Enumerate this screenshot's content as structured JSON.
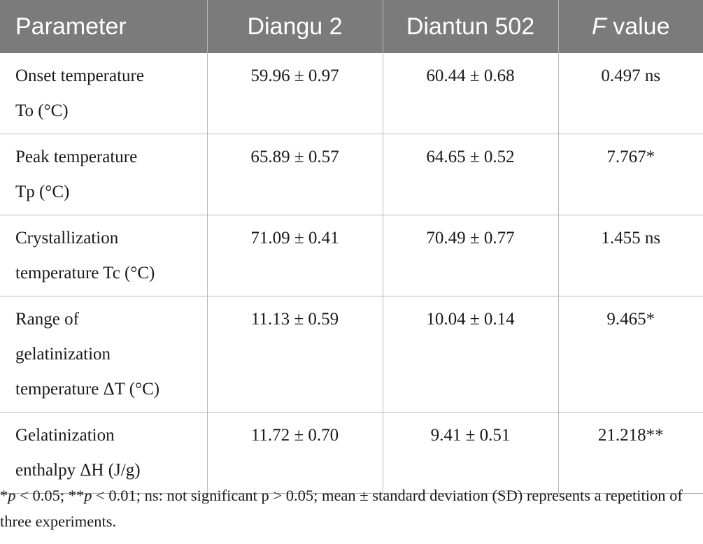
{
  "table": {
    "headers": {
      "parameter": "Parameter",
      "diangu": "Diangu 2",
      "diantun": "Diantun 502",
      "f_italic": "F",
      "f_rest": " value"
    },
    "rows": [
      {
        "param_line1": "Onset temperature",
        "param_line2": "To (°C)",
        "param_line3": "",
        "diangu": "59.96 ± 0.97",
        "diantun": "60.44 ± 0.68",
        "f_value": "0.497 ns"
      },
      {
        "param_line1": "Peak temperature",
        "param_line2": "Tp (°C)",
        "param_line3": "",
        "diangu": "65.89 ± 0.57",
        "diantun": "64.65 ± 0.52",
        "f_value": "7.767*"
      },
      {
        "param_line1": "Crystallization",
        "param_line2": "temperature Tc (°C)",
        "param_line3": "",
        "diangu": "71.09 ± 0.41",
        "diantun": "70.49 ± 0.77",
        "f_value": "1.455 ns"
      },
      {
        "param_line1": "Range of",
        "param_line2": "gelatinization",
        "param_line3": "temperature ΔT (°C)",
        "diangu": "11.13 ± 0.59",
        "diantun": "10.04 ± 0.14",
        "f_value": "9.465*"
      },
      {
        "param_line1": "Gelatinization",
        "param_line2": "enthalpy ΔH (J/g)",
        "param_line3": "",
        "diangu": "11.72 ± 0.70",
        "diantun": "9.41 ± 0.51",
        "f_value": "21.218**"
      }
    ]
  },
  "footnote": {
    "s1": "*",
    "p1": "p",
    "s2": " < 0.05; **",
    "p2": "p",
    "s3": " < 0.01; ns: not significant p > 0.05; mean ± standard deviation (SD) represents a repetition of three experiments."
  }
}
